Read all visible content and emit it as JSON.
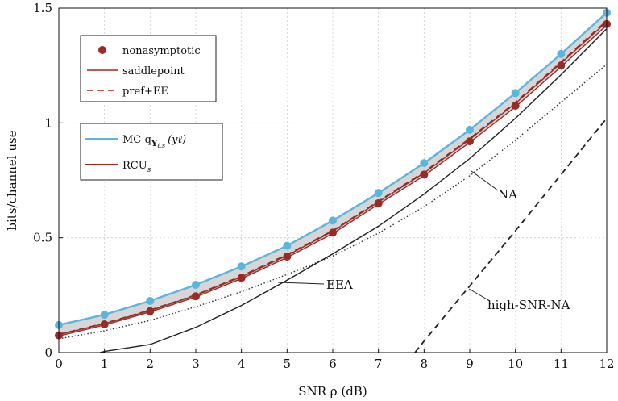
{
  "chart_data": {
    "type": "line",
    "xlabel": "SNR ρ (dB)",
    "ylabel": "bits/channel use",
    "xlim": [
      0,
      12
    ],
    "ylim": [
      0,
      1.5
    ],
    "xticks": [
      "0",
      "1",
      "2",
      "3",
      "4",
      "5",
      "6",
      "7",
      "8",
      "9",
      "10",
      "11",
      "12"
    ],
    "yticks": [
      "0",
      "0.5",
      "1",
      "1.5"
    ],
    "grid": true,
    "legend_position": "top-left",
    "legend_boxes": [
      [
        {
          "series": "nonasymptotic",
          "label": "nonasymptotic"
        },
        {
          "series": "saddlepoint",
          "label": "saddlepoint"
        },
        {
          "series": "prefEE",
          "label": "pref+EE"
        }
      ],
      [
        {
          "series": "mcq",
          "label": "MC-q"
        },
        {
          "series": "rcu",
          "label": "RCU"
        }
      ]
    ],
    "legend_math": {
      "mcq_sub": "Y",
      "mcq_sub2": "ℓ,s",
      "mcq_arg": "(yℓ)",
      "rcu_sub": "s"
    },
    "annotations": [
      {
        "series": "na",
        "label": "NA"
      },
      {
        "series": "eea",
        "label": "EEA"
      },
      {
        "series": "highsnr",
        "label": "high-SNR-NA"
      }
    ],
    "x": [
      0,
      1,
      2,
      3,
      4,
      5,
      6,
      7,
      8,
      9,
      10,
      11,
      12
    ],
    "series": [
      {
        "key": "mcq",
        "name": "MC-q",
        "color": "#5bb6de",
        "style": "solid",
        "markers": "circle",
        "values": [
          0.12,
          0.165,
          0.225,
          0.295,
          0.375,
          0.465,
          0.575,
          0.695,
          0.825,
          0.97,
          1.13,
          1.3,
          1.48
        ]
      },
      {
        "key": "nonasymptotic",
        "name": "nonasymptotic",
        "color": "#9b2a25",
        "style": "solid",
        "markers": "circle",
        "values": [
          0.075,
          0.123,
          0.18,
          0.245,
          0.325,
          0.418,
          0.522,
          0.65,
          0.775,
          0.92,
          1.075,
          1.25,
          1.43
        ]
      },
      {
        "key": "saddlepoint",
        "name": "saddlepoint",
        "color": "#9b2a25",
        "style": "solid",
        "markers": "none",
        "values": [
          0.078,
          0.126,
          0.183,
          0.249,
          0.33,
          0.423,
          0.528,
          0.656,
          0.782,
          0.928,
          1.085,
          1.26,
          1.44
        ]
      },
      {
        "key": "prefEE",
        "name": "pref+EE",
        "color": "#9b2a25",
        "style": "dashed",
        "markers": "none",
        "values": [
          0.08,
          0.128,
          0.186,
          0.252,
          0.334,
          0.427,
          0.532,
          0.66,
          0.787,
          0.933,
          1.09,
          1.266,
          1.446
        ]
      },
      {
        "key": "rcu",
        "name": "RCU",
        "color": "#9b2a25",
        "style": "solid",
        "markers": "none",
        "values": [
          0.072,
          0.12,
          0.177,
          0.242,
          0.322,
          0.414,
          0.518,
          0.646,
          0.77,
          0.915,
          1.07,
          1.245,
          1.425
        ]
      },
      {
        "key": "na",
        "name": "NA",
        "color": "#222222",
        "style": "solid",
        "markers": "none",
        "x": [
          0.9,
          1,
          2,
          3,
          4,
          5,
          6,
          7,
          8,
          9,
          10,
          11,
          12
        ],
        "values": [
          0,
          0.005,
          0.035,
          0.11,
          0.205,
          0.315,
          0.43,
          0.55,
          0.69,
          0.845,
          1.02,
          1.21,
          1.41
        ]
      },
      {
        "key": "eea",
        "name": "EEA",
        "color": "#333333",
        "style": "dotted",
        "markers": "none",
        "values": [
          0.06,
          0.095,
          0.14,
          0.2,
          0.265,
          0.34,
          0.42,
          0.52,
          0.635,
          0.77,
          0.925,
          1.09,
          1.255
        ]
      },
      {
        "key": "highsnr",
        "name": "high-SNR-NA",
        "color": "#222222",
        "style": "dashed",
        "markers": "none",
        "x": [
          7.8,
          8,
          9,
          10,
          11,
          12
        ],
        "values": [
          0,
          0.05,
          0.29,
          0.53,
          0.775,
          1.02
        ]
      }
    ]
  }
}
